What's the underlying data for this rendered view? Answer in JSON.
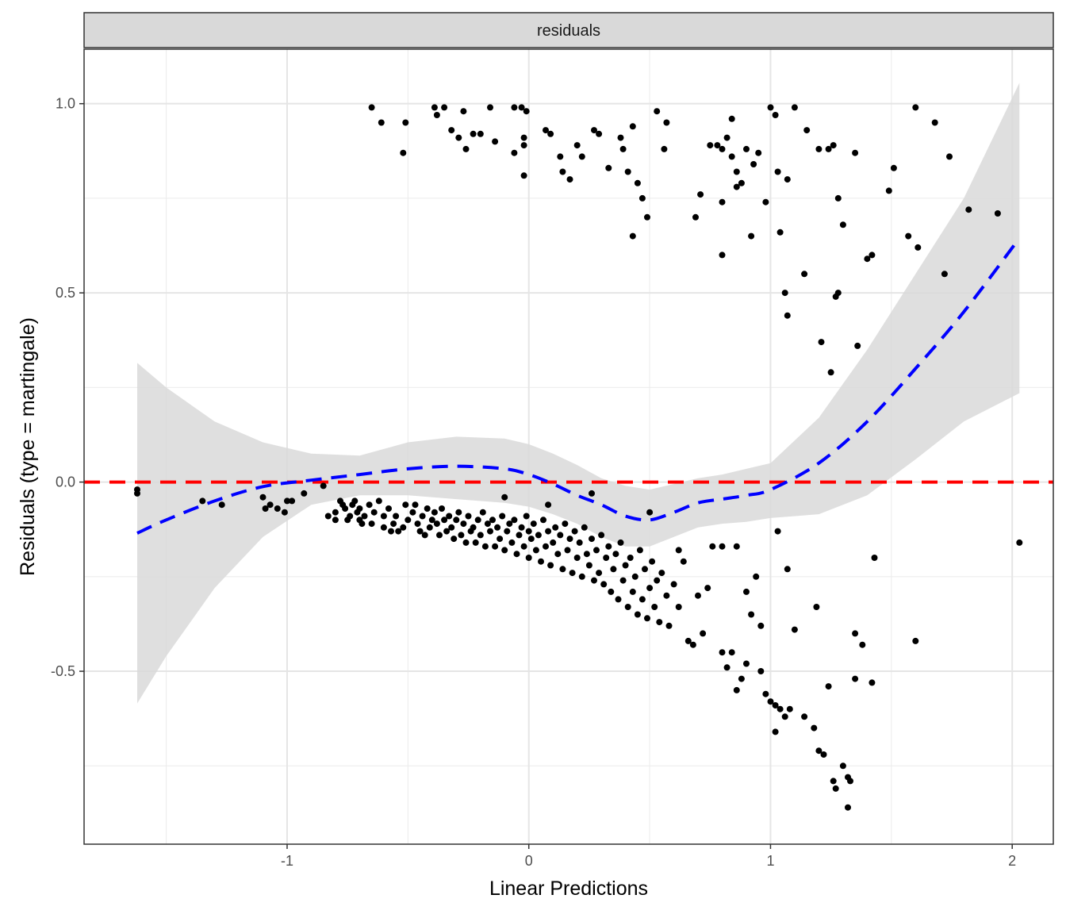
{
  "chart_data": {
    "type": "scatter",
    "facet_label": "residuals",
    "xlabel": "Linear Predictions",
    "ylabel": "Residuals (type = martingale)",
    "xlim": [
      -1.84,
      2.17
    ],
    "ylim": [
      -0.957,
      1.144
    ],
    "x_ticks": [
      {
        "value": -1,
        "label": "-1"
      },
      {
        "value": 0,
        "label": "0"
      },
      {
        "value": 1,
        "label": "1"
      },
      {
        "value": 2,
        "label": "2"
      }
    ],
    "y_ticks": [
      {
        "value": -0.5,
        "label": "-0.5"
      },
      {
        "value": 0.0,
        "label": "0.0"
      },
      {
        "value": 0.5,
        "label": "0.5"
      },
      {
        "value": 1.0,
        "label": "1.0"
      }
    ],
    "grid": true,
    "colors": {
      "points": "#000000",
      "smooth_line": "#0000ff",
      "reference_line": "#ff0000",
      "ribbon": "#d9d9d9",
      "strip_fill": "#d9d9d9"
    },
    "reference_line": {
      "y": 0,
      "style": "dashed"
    },
    "smooth": {
      "style": "dashed",
      "x": [
        -1.62,
        -1.5,
        -1.3,
        -1.1,
        -0.9,
        -0.7,
        -0.5,
        -0.3,
        -0.1,
        0.0,
        0.1,
        0.2,
        0.3,
        0.4,
        0.5,
        0.6,
        0.7,
        0.8,
        0.9,
        1.0,
        1.2,
        1.4,
        1.6,
        1.8,
        2.03
      ],
      "y": [
        -0.135,
        -0.1,
        -0.05,
        -0.012,
        0.005,
        0.02,
        0.035,
        0.042,
        0.035,
        0.02,
        -0.005,
        -0.035,
        -0.06,
        -0.09,
        -0.1,
        -0.08,
        -0.055,
        -0.045,
        -0.035,
        -0.02,
        0.05,
        0.16,
        0.3,
        0.45,
        0.645
      ],
      "lower": [
        -0.585,
        -0.46,
        -0.28,
        -0.145,
        -0.06,
        -0.035,
        -0.035,
        -0.045,
        -0.055,
        -0.065,
        -0.085,
        -0.11,
        -0.145,
        -0.17,
        -0.17,
        -0.145,
        -0.12,
        -0.11,
        -0.105,
        -0.095,
        -0.085,
        -0.035,
        0.06,
        0.16,
        0.235
      ],
      "upper": [
        0.315,
        0.25,
        0.16,
        0.105,
        0.075,
        0.07,
        0.105,
        0.12,
        0.115,
        0.1,
        0.075,
        0.045,
        0.01,
        -0.01,
        -0.02,
        -0.005,
        0.01,
        0.02,
        0.035,
        0.05,
        0.17,
        0.35,
        0.55,
        0.75,
        1.055
      ]
    },
    "points": [
      [
        -1.62,
        -0.03
      ],
      [
        -1.62,
        -0.02
      ],
      [
        -1.35,
        -0.05
      ],
      [
        -1.27,
        -0.06
      ],
      [
        -1.1,
        -0.04
      ],
      [
        -1.09,
        -0.07
      ],
      [
        -1.07,
        -0.06
      ],
      [
        -1.04,
        -0.07
      ],
      [
        -1.01,
        -0.08
      ],
      [
        -1.0,
        -0.05
      ],
      [
        -0.98,
        -0.05
      ],
      [
        -0.93,
        -0.03
      ],
      [
        -0.85,
        -0.01
      ],
      [
        -0.83,
        -0.09
      ],
      [
        -0.8,
        -0.08
      ],
      [
        -0.8,
        -0.1
      ],
      [
        -0.78,
        -0.05
      ],
      [
        -0.77,
        -0.06
      ],
      [
        -0.76,
        -0.07
      ],
      [
        -0.75,
        -0.1
      ],
      [
        -0.74,
        -0.09
      ],
      [
        -0.73,
        -0.06
      ],
      [
        -0.72,
        -0.05
      ],
      [
        -0.71,
        -0.08
      ],
      [
        -0.7,
        -0.1
      ],
      [
        -0.7,
        -0.07
      ],
      [
        -0.69,
        -0.11
      ],
      [
        -0.68,
        -0.09
      ],
      [
        -0.66,
        -0.06
      ],
      [
        -0.65,
        -0.11
      ],
      [
        -0.64,
        -0.08
      ],
      [
        -0.62,
        -0.05
      ],
      [
        -0.6,
        -0.09
      ],
      [
        -0.6,
        -0.12
      ],
      [
        -0.58,
        -0.07
      ],
      [
        -0.57,
        -0.13
      ],
      [
        -0.56,
        -0.11
      ],
      [
        -0.55,
        -0.09
      ],
      [
        -0.54,
        -0.13
      ],
      [
        -0.52,
        -0.12
      ],
      [
        -0.51,
        -0.06
      ],
      [
        -0.5,
        -0.1
      ],
      [
        -0.48,
        -0.08
      ],
      [
        -0.47,
        -0.06
      ],
      [
        -0.46,
        -0.11
      ],
      [
        -0.45,
        -0.13
      ],
      [
        -0.44,
        -0.09
      ],
      [
        -0.43,
        -0.14
      ],
      [
        -0.42,
        -0.07
      ],
      [
        -0.41,
        -0.12
      ],
      [
        -0.4,
        -0.1
      ],
      [
        -0.39,
        -0.08
      ],
      [
        -0.38,
        -0.11
      ],
      [
        -0.37,
        -0.14
      ],
      [
        -0.36,
        -0.07
      ],
      [
        -0.35,
        -0.1
      ],
      [
        -0.34,
        -0.13
      ],
      [
        -0.33,
        -0.09
      ],
      [
        -0.32,
        -0.12
      ],
      [
        -0.31,
        -0.15
      ],
      [
        -0.3,
        -0.1
      ],
      [
        -0.29,
        -0.08
      ],
      [
        -0.28,
        -0.14
      ],
      [
        -0.27,
        -0.11
      ],
      [
        -0.26,
        -0.16
      ],
      [
        -0.25,
        -0.09
      ],
      [
        -0.24,
        -0.13
      ],
      [
        -0.23,
        -0.12
      ],
      [
        -0.22,
        -0.16
      ],
      [
        -0.21,
        -0.1
      ],
      [
        -0.2,
        -0.14
      ],
      [
        -0.19,
        -0.08
      ],
      [
        -0.18,
        -0.17
      ],
      [
        -0.17,
        -0.11
      ],
      [
        -0.16,
        -0.13
      ],
      [
        -0.15,
        -0.1
      ],
      [
        -0.14,
        -0.17
      ],
      [
        -0.13,
        -0.12
      ],
      [
        -0.12,
        -0.15
      ],
      [
        -0.11,
        -0.09
      ],
      [
        -0.1,
        -0.18
      ],
      [
        -0.09,
        -0.13
      ],
      [
        -0.08,
        -0.11
      ],
      [
        -0.07,
        -0.16
      ],
      [
        -0.06,
        -0.1
      ],
      [
        -0.05,
        -0.19
      ],
      [
        -0.04,
        -0.14
      ],
      [
        -0.03,
        -0.12
      ],
      [
        -0.02,
        -0.17
      ],
      [
        -0.01,
        -0.09
      ],
      [
        0.0,
        -0.2
      ],
      [
        0.0,
        -0.13
      ],
      [
        0.01,
        -0.15
      ],
      [
        0.02,
        -0.11
      ],
      [
        0.03,
        -0.18
      ],
      [
        0.04,
        -0.14
      ],
      [
        0.05,
        -0.21
      ],
      [
        0.06,
        -0.1
      ],
      [
        0.07,
        -0.17
      ],
      [
        0.08,
        -0.13
      ],
      [
        0.09,
        -0.22
      ],
      [
        0.1,
        -0.16
      ],
      [
        0.11,
        -0.12
      ],
      [
        0.12,
        -0.19
      ],
      [
        0.13,
        -0.14
      ],
      [
        0.14,
        -0.23
      ],
      [
        0.15,
        -0.11
      ],
      [
        0.16,
        -0.18
      ],
      [
        0.17,
        -0.15
      ],
      [
        0.18,
        -0.24
      ],
      [
        0.19,
        -0.13
      ],
      [
        0.2,
        -0.2
      ],
      [
        0.21,
        -0.16
      ],
      [
        0.22,
        -0.25
      ],
      [
        0.23,
        -0.12
      ],
      [
        0.24,
        -0.19
      ],
      [
        0.25,
        -0.22
      ],
      [
        0.26,
        -0.15
      ],
      [
        0.27,
        -0.26
      ],
      [
        0.28,
        -0.18
      ],
      [
        0.29,
        -0.24
      ],
      [
        0.3,
        -0.14
      ],
      [
        0.31,
        -0.27
      ],
      [
        0.32,
        -0.2
      ],
      [
        0.33,
        -0.17
      ],
      [
        0.34,
        -0.29
      ],
      [
        0.35,
        -0.23
      ],
      [
        0.36,
        -0.19
      ],
      [
        0.37,
        -0.31
      ],
      [
        0.38,
        -0.16
      ],
      [
        0.39,
        -0.26
      ],
      [
        0.4,
        -0.22
      ],
      [
        0.41,
        -0.33
      ],
      [
        0.42,
        -0.2
      ],
      [
        0.43,
        -0.29
      ],
      [
        0.44,
        -0.25
      ],
      [
        0.45,
        -0.35
      ],
      [
        0.46,
        -0.18
      ],
      [
        0.47,
        -0.31
      ],
      [
        0.48,
        -0.23
      ],
      [
        0.49,
        -0.36
      ],
      [
        0.5,
        -0.28
      ],
      [
        0.51,
        -0.21
      ],
      [
        0.52,
        -0.33
      ],
      [
        0.53,
        -0.26
      ],
      [
        0.54,
        -0.37
      ],
      [
        0.55,
        -0.24
      ],
      [
        0.57,
        -0.3
      ],
      [
        0.58,
        -0.38
      ],
      [
        0.6,
        -0.27
      ],
      [
        0.62,
        -0.33
      ],
      [
        0.64,
        -0.21
      ],
      [
        0.66,
        -0.42
      ],
      [
        0.68,
        -0.43
      ],
      [
        0.7,
        -0.3
      ],
      [
        0.72,
        -0.4
      ],
      [
        0.74,
        -0.28
      ],
      [
        0.76,
        -0.17
      ],
      [
        0.8,
        -0.17
      ],
      [
        0.8,
        -0.45
      ],
      [
        0.82,
        -0.49
      ],
      [
        0.84,
        -0.45
      ],
      [
        0.86,
        -0.55
      ],
      [
        0.88,
        -0.52
      ],
      [
        0.9,
        -0.48
      ],
      [
        0.9,
        -0.29
      ],
      [
        0.92,
        -0.35
      ],
      [
        0.94,
        -0.25
      ],
      [
        0.96,
        -0.38
      ],
      [
        0.96,
        -0.5
      ],
      [
        0.98,
        -0.56
      ],
      [
        1.0,
        -0.58
      ],
      [
        1.02,
        -0.59
      ],
      [
        1.02,
        -0.66
      ],
      [
        1.04,
        -0.6
      ],
      [
        1.06,
        -0.62
      ],
      [
        1.08,
        -0.6
      ],
      [
        1.1,
        -0.39
      ],
      [
        1.14,
        -0.62
      ],
      [
        1.18,
        -0.65
      ],
      [
        1.2,
        -0.71
      ],
      [
        1.22,
        -0.72
      ],
      [
        1.24,
        -0.54
      ],
      [
        1.26,
        -0.79
      ],
      [
        1.27,
        -0.81
      ],
      [
        1.3,
        -0.75
      ],
      [
        1.32,
        -0.78
      ],
      [
        1.33,
        -0.79
      ],
      [
        1.32,
        -0.86
      ],
      [
        1.35,
        -0.4
      ],
      [
        1.35,
        -0.52
      ],
      [
        1.38,
        -0.43
      ],
      [
        1.42,
        -0.53
      ],
      [
        1.43,
        -0.2
      ],
      [
        1.6,
        -0.42
      ],
      [
        2.03,
        -0.16
      ],
      [
        -0.1,
        -0.04
      ],
      [
        0.08,
        -0.06
      ],
      [
        0.26,
        -0.03
      ],
      [
        0.5,
        -0.08
      ],
      [
        0.62,
        -0.18
      ],
      [
        0.86,
        -0.17
      ],
      [
        1.03,
        -0.13
      ],
      [
        1.07,
        -0.23
      ],
      [
        1.19,
        -0.33
      ],
      [
        -0.65,
        0.99
      ],
      [
        -0.61,
        0.95
      ],
      [
        -0.52,
        0.87
      ],
      [
        -0.51,
        0.95
      ],
      [
        -0.39,
        0.99
      ],
      [
        -0.38,
        0.97
      ],
      [
        -0.35,
        0.99
      ],
      [
        -0.32,
        0.93
      ],
      [
        -0.29,
        0.91
      ],
      [
        -0.27,
        0.98
      ],
      [
        -0.26,
        0.88
      ],
      [
        -0.23,
        0.92
      ],
      [
        -0.2,
        0.92
      ],
      [
        -0.16,
        0.99
      ],
      [
        -0.14,
        0.9
      ],
      [
        -0.06,
        0.99
      ],
      [
        -0.06,
        0.87
      ],
      [
        -0.03,
        0.99
      ],
      [
        -0.02,
        0.91
      ],
      [
        -0.01,
        0.98
      ],
      [
        -0.02,
        0.81
      ],
      [
        -0.02,
        0.89
      ],
      [
        0.07,
        0.93
      ],
      [
        0.09,
        0.92
      ],
      [
        0.13,
        0.86
      ],
      [
        0.14,
        0.82
      ],
      [
        0.17,
        0.8
      ],
      [
        0.2,
        0.89
      ],
      [
        0.22,
        0.86
      ],
      [
        0.27,
        0.93
      ],
      [
        0.29,
        0.92
      ],
      [
        0.33,
        0.83
      ],
      [
        0.38,
        0.91
      ],
      [
        0.39,
        0.88
      ],
      [
        0.41,
        0.82
      ],
      [
        0.43,
        0.94
      ],
      [
        0.45,
        0.79
      ],
      [
        0.47,
        0.75
      ],
      [
        0.49,
        0.7
      ],
      [
        0.43,
        0.65
      ],
      [
        0.53,
        0.98
      ],
      [
        0.57,
        0.95
      ],
      [
        0.56,
        0.88
      ],
      [
        0.69,
        0.7
      ],
      [
        0.71,
        0.76
      ],
      [
        0.75,
        0.89
      ],
      [
        0.78,
        0.89
      ],
      [
        0.8,
        0.88
      ],
      [
        0.8,
        0.74
      ],
      [
        0.8,
        0.6
      ],
      [
        0.82,
        0.91
      ],
      [
        0.84,
        0.96
      ],
      [
        0.84,
        0.86
      ],
      [
        0.86,
        0.78
      ],
      [
        0.86,
        0.82
      ],
      [
        0.88,
        0.79
      ],
      [
        0.9,
        0.88
      ],
      [
        0.92,
        0.65
      ],
      [
        0.93,
        0.84
      ],
      [
        0.95,
        0.87
      ],
      [
        0.98,
        0.74
      ],
      [
        1.0,
        0.99
      ],
      [
        1.02,
        0.97
      ],
      [
        1.03,
        0.82
      ],
      [
        1.04,
        0.66
      ],
      [
        1.06,
        0.5
      ],
      [
        1.07,
        0.44
      ],
      [
        1.07,
        0.8
      ],
      [
        1.1,
        0.99
      ],
      [
        1.14,
        0.55
      ],
      [
        1.15,
        0.93
      ],
      [
        1.2,
        0.88
      ],
      [
        1.21,
        0.37
      ],
      [
        1.24,
        0.88
      ],
      [
        1.25,
        0.29
      ],
      [
        1.26,
        0.89
      ],
      [
        1.27,
        0.49
      ],
      [
        1.28,
        0.5
      ],
      [
        1.28,
        0.75
      ],
      [
        1.3,
        0.68
      ],
      [
        1.35,
        0.87
      ],
      [
        1.36,
        0.36
      ],
      [
        1.4,
        0.59
      ],
      [
        1.42,
        0.6
      ],
      [
        1.49,
        0.77
      ],
      [
        1.51,
        0.83
      ],
      [
        1.57,
        0.65
      ],
      [
        1.6,
        0.99
      ],
      [
        1.61,
        0.62
      ],
      [
        1.68,
        0.95
      ],
      [
        1.72,
        0.55
      ],
      [
        1.74,
        0.86
      ],
      [
        1.82,
        0.72
      ],
      [
        1.94,
        0.71
      ]
    ]
  }
}
